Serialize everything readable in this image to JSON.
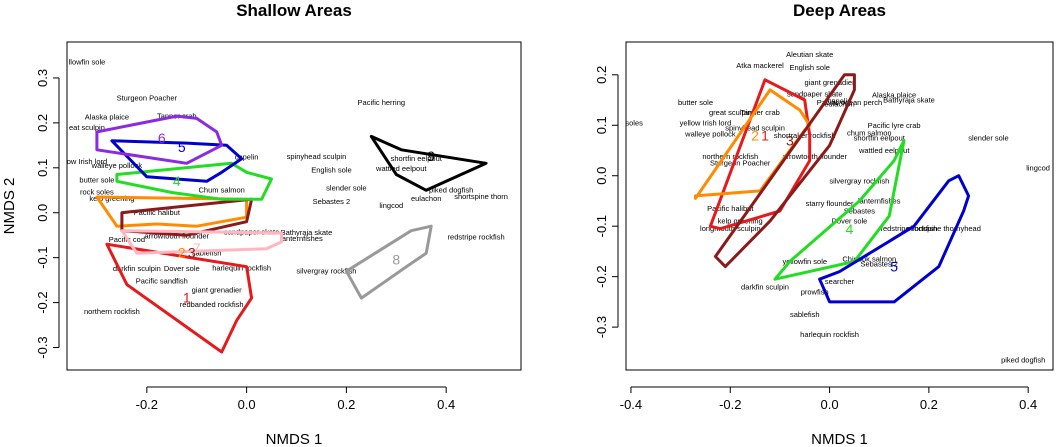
{
  "chart_data": [
    {
      "type": "scatter",
      "title": "Shallow Areas",
      "xlabel": "NMDS 1",
      "ylabel": "NMDS 2",
      "xlim": [
        -0.36,
        0.55
      ],
      "ylim": [
        -0.35,
        0.38
      ],
      "xticks": [
        -0.2,
        0.0,
        0.2,
        0.4
      ],
      "xtick_labels": [
        "-0.2",
        "0.0",
        "0.2",
        "0.4"
      ],
      "yticks": [
        -0.3,
        -0.2,
        -0.1,
        0.0,
        0.1,
        0.2,
        0.3
      ],
      "ytick_labels": [
        "-0.3",
        "-0.2",
        "-0.1",
        "0.0",
        "0.1",
        "0.2",
        "0.3"
      ],
      "species": [
        {
          "name": "llowfin sole",
          "x": -0.32,
          "y": 0.33
        },
        {
          "name": "Sturgeon Poacher",
          "x": -0.2,
          "y": 0.25
        },
        {
          "name": "Pacific herring",
          "x": 0.27,
          "y": 0.24
        },
        {
          "name": "Tanner crab",
          "x": -0.14,
          "y": 0.21
        },
        {
          "name": "Alaska plaice",
          "x": -0.28,
          "y": 0.207
        },
        {
          "name": "eat sculpin",
          "x": -0.32,
          "y": 0.184
        },
        {
          "name": "capelin",
          "x": 0.0,
          "y": 0.118
        },
        {
          "name": "spinyhead sculpin",
          "x": 0.14,
          "y": 0.12
        },
        {
          "name": "shortfin eelpout",
          "x": 0.34,
          "y": 0.115
        },
        {
          "name": "ow Irish lord",
          "x": -0.32,
          "y": 0.108
        },
        {
          "name": "walleye pollock",
          "x": -0.26,
          "y": 0.1
        },
        {
          "name": "wattled eelpout",
          "x": 0.31,
          "y": 0.093
        },
        {
          "name": "English sole",
          "x": 0.17,
          "y": 0.09
        },
        {
          "name": "butter sole",
          "x": -0.3,
          "y": 0.067
        },
        {
          "name": "slender sole",
          "x": 0.2,
          "y": 0.05
        },
        {
          "name": "piked dogfish",
          "x": 0.41,
          "y": 0.045
        },
        {
          "name": "Chum salmon",
          "x": -0.05,
          "y": 0.045
        },
        {
          "name": "rock soles",
          "x": -0.3,
          "y": 0.041
        },
        {
          "name": "shortspine thorn",
          "x": 0.47,
          "y": 0.031
        },
        {
          "name": "kelp greening",
          "x": -0.27,
          "y": 0.026
        },
        {
          "name": "eulachon",
          "x": 0.36,
          "y": 0.026
        },
        {
          "name": "Sebastes 2",
          "x": 0.17,
          "y": 0.02
        },
        {
          "name": "lingcod",
          "x": 0.29,
          "y": 0.01
        },
        {
          "name": "Pacific halibut",
          "x": -0.18,
          "y": -0.005
        },
        {
          "name": "redstripe rockfish",
          "x": 0.46,
          "y": -0.06
        },
        {
          "name": "sandpaper skate",
          "x": 0.01,
          "y": -0.048
        },
        {
          "name": "arrowtooth flounder",
          "x": -0.14,
          "y": -0.057
        },
        {
          "name": "Pacific cod",
          "x": -0.24,
          "y": -0.065
        },
        {
          "name": "lanternfishes",
          "x": 0.11,
          "y": -0.063
        },
        {
          "name": "silvergray rockfish",
          "x": 0.16,
          "y": -0.135
        },
        {
          "name": "harlequin rockfish",
          "x": -0.01,
          "y": -0.128
        },
        {
          "name": "darkfin sculpin",
          "x": -0.22,
          "y": -0.13
        },
        {
          "name": "giant grenadier",
          "x": -0.06,
          "y": -0.178
        },
        {
          "name": "redbanded rockfish",
          "x": -0.07,
          "y": -0.21
        },
        {
          "name": "northern rockfish",
          "x": -0.27,
          "y": -0.225
        },
        {
          "name": "Pacific sandfish",
          "x": -0.17,
          "y": -0.158
        },
        {
          "name": "Dover sole",
          "x": -0.13,
          "y": -0.13
        },
        {
          "name": "sablefish",
          "x": -0.08,
          "y": -0.095
        },
        {
          "name": "Bathyraja skate",
          "x": 0.12,
          "y": -0.05
        }
      ],
      "groups": [
        {
          "label": "1",
          "color": "#e41a1c",
          "label_xy": [
            -0.12,
            -0.2
          ],
          "hull": [
            [
              -0.28,
              -0.07
            ],
            [
              0.0,
              -0.12
            ],
            [
              0.01,
              -0.19
            ],
            [
              -0.02,
              -0.24
            ],
            [
              -0.05,
              -0.31
            ],
            [
              -0.24,
              -0.16
            ]
          ]
        },
        {
          "label": "2",
          "color": "#ff8c00",
          "label_xy": [
            -0.13,
            -0.1
          ],
          "hull": [
            [
              -0.3,
              0.035
            ],
            [
              0.0,
              0.03
            ],
            [
              0.0,
              -0.01
            ],
            [
              -0.1,
              -0.03
            ],
            [
              -0.18,
              -0.025
            ],
            [
              -0.26,
              -0.03
            ]
          ]
        },
        {
          "label": "3",
          "color": "#8b1a1a",
          "label_xy": [
            -0.11,
            -0.1
          ],
          "hull": [
            [
              -0.25,
              0.0
            ],
            [
              0.01,
              0.03
            ],
            [
              0.0,
              -0.02
            ],
            [
              -0.12,
              -0.05
            ],
            [
              -0.25,
              -0.04
            ]
          ]
        },
        {
          "label": "4",
          "color": "#22dd22",
          "label_xy": [
            -0.14,
            0.06
          ],
          "hull": [
            [
              -0.26,
              0.085
            ],
            [
              -0.03,
              0.11
            ],
            [
              0.0,
              0.09
            ],
            [
              0.05,
              0.075
            ],
            [
              0.03,
              0.03
            ],
            [
              -0.05,
              0.03
            ],
            [
              -0.15,
              0.045
            ],
            [
              -0.26,
              0.07
            ]
          ]
        },
        {
          "label": "5",
          "color": "#0000cc",
          "label_xy": [
            -0.13,
            0.135
          ],
          "hull": [
            [
              -0.27,
              0.16
            ],
            [
              -0.12,
              0.155
            ],
            [
              -0.04,
              0.15
            ],
            [
              -0.01,
              0.12
            ],
            [
              -0.05,
              0.09
            ],
            [
              -0.08,
              0.07
            ],
            [
              -0.2,
              0.08
            ]
          ]
        },
        {
          "label": "6",
          "color": "#8a2be2",
          "label_xy": [
            -0.17,
            0.155
          ],
          "hull": [
            [
              -0.3,
              0.18
            ],
            [
              -0.14,
              0.215
            ],
            [
              -0.1,
              0.21
            ],
            [
              -0.06,
              0.18
            ],
            [
              -0.05,
              0.15
            ],
            [
              -0.12,
              0.11
            ],
            [
              -0.3,
              0.14
            ]
          ]
        },
        {
          "label": "7",
          "color": "#ffb6c1",
          "label_xy": [
            -0.1,
            -0.09
          ],
          "hull": [
            [
              -0.25,
              -0.04
            ],
            [
              0.07,
              -0.045
            ],
            [
              0.07,
              -0.065
            ],
            [
              0.04,
              -0.08
            ],
            [
              -0.22,
              -0.09
            ]
          ]
        },
        {
          "label": "8",
          "color": "#999999",
          "label_xy": [
            0.3,
            -0.115
          ],
          "hull": [
            [
              0.2,
              -0.13
            ],
            [
              0.33,
              -0.04
            ],
            [
              0.37,
              -0.03
            ],
            [
              0.36,
              -0.09
            ],
            [
              0.32,
              -0.12
            ],
            [
              0.23,
              -0.19
            ]
          ]
        },
        {
          "label": "9",
          "color": "#000000",
          "label_xy": [
            0.37,
            0.115
          ],
          "hull": [
            [
              0.25,
              0.17
            ],
            [
              0.31,
              0.14
            ],
            [
              0.48,
              0.11
            ],
            [
              0.36,
              0.05
            ],
            [
              0.3,
              0.085
            ]
          ]
        }
      ]
    },
    {
      "type": "scatter",
      "title": "Deep Areas",
      "xlabel": "NMDS 1",
      "ylabel": "",
      "xlim": [
        -0.41,
        0.45
      ],
      "ylim": [
        -0.385,
        0.265
      ],
      "xticks": [
        -0.4,
        -0.2,
        0.0,
        0.2,
        0.4
      ],
      "xtick_labels": [
        "-0.4",
        "-0.2",
        "0.0",
        "0.2",
        "0.4"
      ],
      "yticks": [
        -0.3,
        -0.2,
        -0.1,
        0.0,
        0.1,
        0.2
      ],
      "ytick_labels": [
        "-0.3",
        "-0.2",
        "-0.1",
        "0.0",
        "0.1",
        "0.2"
      ],
      "species": [
        {
          "name": "Aleutian skate",
          "x": -0.04,
          "y": 0.235
        },
        {
          "name": "Atka mackerel",
          "x": -0.14,
          "y": 0.213
        },
        {
          "name": "English sole",
          "x": -0.04,
          "y": 0.21
        },
        {
          "name": "giant grenadier",
          "x": 0.0,
          "y": 0.18
        },
        {
          "name": "sandpaper skate",
          "x": -0.03,
          "y": 0.157
        },
        {
          "name": "butter sole",
          "x": -0.27,
          "y": 0.14
        },
        {
          "name": "capelin",
          "x": 0.02,
          "y": 0.143
        },
        {
          "name": "Pacific ocean perch",
          "x": 0.04,
          "y": 0.14
        },
        {
          "name": "eulachon",
          "x": 0.02,
          "y": 0.137
        },
        {
          "name": "Alaska plaice",
          "x": 0.13,
          "y": 0.155
        },
        {
          "name": "Bathyraja skate",
          "x": 0.16,
          "y": 0.145
        },
        {
          "name": "great sculpin",
          "x": -0.2,
          "y": 0.12
        },
        {
          "name": "Tanner crab",
          "x": -0.14,
          "y": 0.12
        },
        {
          "name": "rock soles",
          "x": -0.41,
          "y": 0.1
        },
        {
          "name": "yellow Irish lord",
          "x": -0.25,
          "y": 0.1
        },
        {
          "name": "spinyhead sculpin",
          "x": -0.15,
          "y": 0.09
        },
        {
          "name": "shortraker rockfish",
          "x": -0.05,
          "y": 0.075
        },
        {
          "name": "chum salmon",
          "x": 0.08,
          "y": 0.08
        },
        {
          "name": "shortfin eelpout",
          "x": 0.1,
          "y": 0.07
        },
        {
          "name": "slender sole",
          "x": 0.32,
          "y": 0.07
        },
        {
          "name": "walleye pollock",
          "x": -0.24,
          "y": 0.078
        },
        {
          "name": "wattled eelpout",
          "x": 0.11,
          "y": 0.045
        },
        {
          "name": "northern rockfish",
          "x": -0.2,
          "y": 0.033
        },
        {
          "name": "arrowtooth flounder",
          "x": -0.03,
          "y": 0.033
        },
        {
          "name": "Sturgeon Poacher",
          "x": -0.18,
          "y": 0.02
        },
        {
          "name": "Pacific lyre crab",
          "x": 0.13,
          "y": 0.095
        },
        {
          "name": "lingcod",
          "x": 0.42,
          "y": 0.01
        },
        {
          "name": "starry flounder",
          "x": 0.0,
          "y": -0.06
        },
        {
          "name": "lanternfishes",
          "x": 0.1,
          "y": -0.055
        },
        {
          "name": "Sebastes",
          "x": 0.06,
          "y": -0.075
        },
        {
          "name": "Pacific halibut",
          "x": -0.2,
          "y": -0.07
        },
        {
          "name": "kelp greening",
          "x": -0.18,
          "y": -0.095
        },
        {
          "name": "longmouth sculpin",
          "x": -0.2,
          "y": -0.11
        },
        {
          "name": "Dover sole",
          "x": 0.04,
          "y": -0.095
        },
        {
          "name": "redstripe rockfish",
          "x": 0.16,
          "y": -0.11
        },
        {
          "name": "shortspine thornyhead",
          "x": 0.23,
          "y": -0.11
        },
        {
          "name": "silvergray rockfish",
          "x": 0.06,
          "y": -0.015
        },
        {
          "name": "Chinook salmon",
          "x": 0.08,
          "y": -0.17
        },
        {
          "name": "Sebastes 2",
          "x": 0.1,
          "y": -0.18
        },
        {
          "name": "yellowfin sole",
          "x": -0.05,
          "y": -0.175
        },
        {
          "name": "searcher",
          "x": 0.02,
          "y": -0.215
        },
        {
          "name": "darkfin sculpin",
          "x": -0.13,
          "y": -0.225
        },
        {
          "name": "prowfish",
          "x": -0.03,
          "y": -0.235
        },
        {
          "name": "sablefish",
          "x": -0.05,
          "y": -0.28
        },
        {
          "name": "harlequin rockfish",
          "x": 0.0,
          "y": -0.32
        },
        {
          "name": "piked dogfish",
          "x": 0.39,
          "y": -0.37
        }
      ],
      "groups": [
        {
          "label": "1",
          "color": "#e41a1c",
          "label_xy": [
            -0.13,
            0.07
          ],
          "hull": [
            [
              -0.24,
              -0.1
            ],
            [
              -0.13,
              0.19
            ],
            [
              -0.05,
              0.15
            ],
            [
              -0.04,
              0.08
            ],
            [
              -0.04,
              0.03
            ],
            [
              -0.1,
              -0.07
            ],
            [
              -0.22,
              -0.105
            ]
          ]
        },
        {
          "label": "2",
          "color": "#ff8c00",
          "label_xy": [
            -0.15,
            0.07
          ],
          "hull": [
            [
              -0.27,
              -0.045
            ],
            [
              -0.12,
              0.17
            ],
            [
              -0.06,
              0.13
            ],
            [
              -0.04,
              0.1
            ],
            [
              -0.05,
              0.09
            ],
            [
              -0.14,
              -0.03
            ],
            [
              -0.27,
              -0.04
            ]
          ]
        },
        {
          "label": "3",
          "color": "#8b1a1a",
          "label_xy": [
            -0.08,
            0.06
          ],
          "hull": [
            [
              -0.23,
              -0.16
            ],
            [
              0.03,
              0.2
            ],
            [
              0.05,
              0.2
            ],
            [
              0.05,
              0.17
            ],
            [
              0.0,
              0.06
            ],
            [
              -0.12,
              -0.09
            ],
            [
              -0.21,
              -0.18
            ]
          ]
        },
        {
          "label": "4",
          "color": "#22dd22",
          "label_xy": [
            0.04,
            -0.115
          ],
          "hull": [
            [
              -0.11,
              -0.205
            ],
            [
              0.05,
              -0.17
            ],
            [
              0.12,
              -0.08
            ],
            [
              0.15,
              0.07
            ],
            [
              0.13,
              0.03
            ],
            [
              0.06,
              -0.05
            ],
            [
              -0.08,
              -0.17
            ]
          ]
        },
        {
          "label": "5",
          "color": "#0000cc",
          "label_xy": [
            0.13,
            -0.19
          ],
          "hull": [
            [
              -0.02,
              -0.205
            ],
            [
              0.0,
              -0.25
            ],
            [
              0.13,
              -0.25
            ],
            [
              0.22,
              -0.18
            ],
            [
              0.27,
              -0.07
            ],
            [
              0.28,
              -0.04
            ],
            [
              0.26,
              0.0
            ],
            [
              0.24,
              -0.01
            ],
            [
              0.17,
              -0.1
            ],
            [
              0.02,
              -0.19
            ]
          ]
        }
      ]
    }
  ]
}
